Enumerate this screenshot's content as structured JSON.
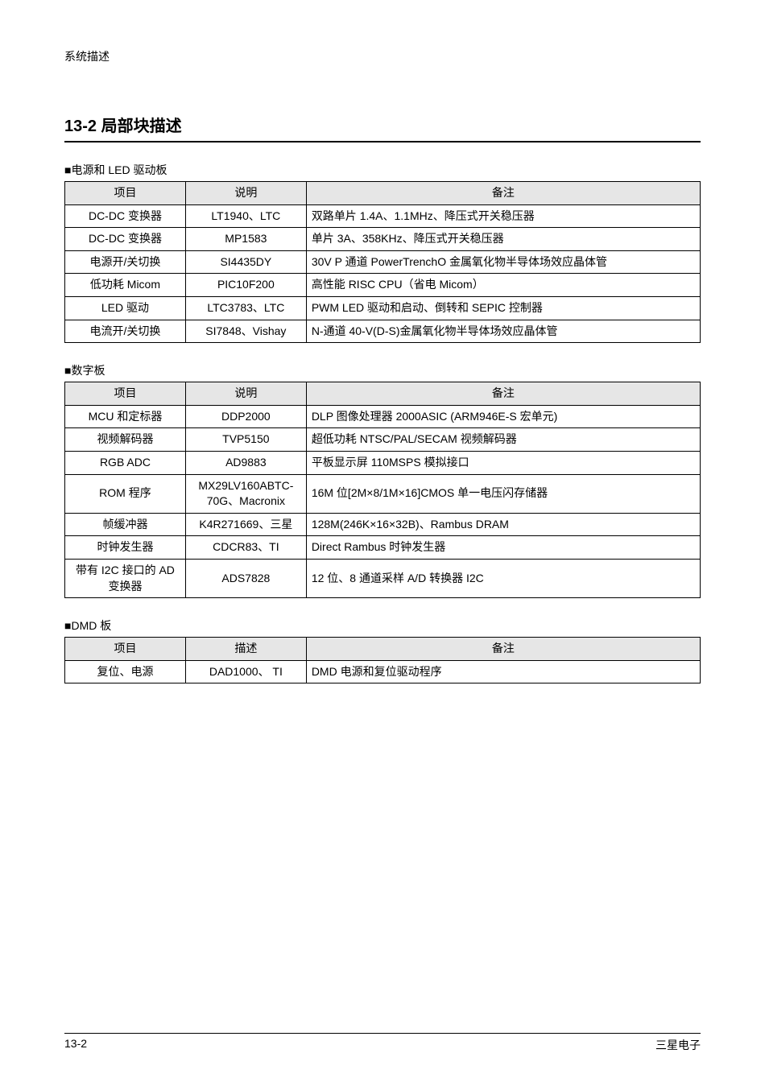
{
  "header": {
    "label": "系统描述"
  },
  "section": {
    "title": "13-2  局部块描述"
  },
  "table1": {
    "caption": "■电源和 LED 驱动板",
    "headers": {
      "item": "项目",
      "desc": "说明",
      "note": "备注"
    },
    "rows": [
      {
        "item": "DC-DC 变换器",
        "desc": "LT1940、LTC",
        "note": "双路单片 1.4A、1.1MHz、降压式开关稳压器"
      },
      {
        "item": "DC-DC 变换器",
        "desc": "MP1583",
        "note": "单片 3A、358KHz、降压式开关稳压器"
      },
      {
        "item": "电源开/关切换",
        "desc": "SI4435DY",
        "note": "30V P 通道 PowerTrenchO 金属氧化物半导体场效应晶体管"
      },
      {
        "item": "低功耗 Micom",
        "desc": "PIC10F200",
        "note": "高性能 RISC CPU（省电 Micom）"
      },
      {
        "item": "LED 驱动",
        "desc": "LTC3783、LTC",
        "note": "PWM LED 驱动和启动、倒转和 SEPIC 控制器"
      },
      {
        "item": "电流开/关切换",
        "desc": "SI7848、Vishay",
        "note": "N-通道 40-V(D-S)金属氧化物半导体场效应晶体管"
      }
    ]
  },
  "table2": {
    "caption": "■数字板",
    "headers": {
      "item": "项目",
      "desc": "说明",
      "note": "备注"
    },
    "rows": [
      {
        "item": "MCU 和定标器",
        "desc": "DDP2000",
        "note": "DLP 图像处理器 2000ASIC (ARM946E-S 宏单元)"
      },
      {
        "item": "视频解码器",
        "desc": "TVP5150",
        "note": "超低功耗 NTSC/PAL/SECAM 视频解码器"
      },
      {
        "item": "RGB ADC",
        "desc": "AD9883",
        "note": "平板显示屏 110MSPS 模拟接口"
      },
      {
        "item": "ROM 程序",
        "desc": "MX29LV160ABTC-70G、Macronix",
        "note": "16M 位[2M×8/1M×16]CMOS 单一电压闪存储器",
        "rowspan2": true
      },
      {
        "item": "帧缓冲器",
        "desc": "K4R271669、三星",
        "note": "128M(246K×16×32B)、Rambus DRAM"
      },
      {
        "item": "时钟发生器",
        "desc": "CDCR83、TI",
        "note": "Direct Rambus 时钟发生器"
      },
      {
        "item": "带有 I2C 接口的 AD 变换器",
        "desc": "ADS7828",
        "note": "12 位、8 通道采样 A/D  转换器 I2C",
        "rowspan2b": true
      }
    ]
  },
  "table3": {
    "caption": "■DMD 板",
    "headers": {
      "item": "项目",
      "desc": "描述",
      "note": "备注"
    },
    "rows": [
      {
        "item": "复位、电源",
        "desc": "DAD1000、 TI",
        "note": "DMD 电源和复位驱动程序"
      }
    ]
  },
  "footer": {
    "left": "13-2",
    "right": "三星电子"
  }
}
